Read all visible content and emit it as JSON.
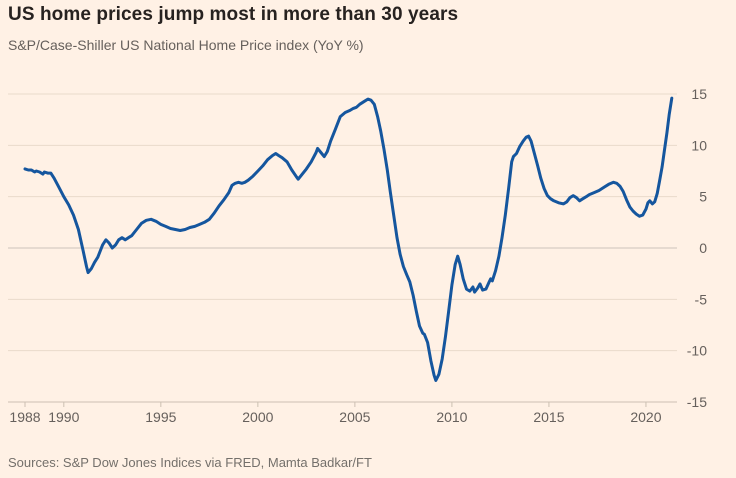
{
  "header": {
    "title": "US home prices jump most in more than 30 years",
    "subtitle": "S&P/Case-Shiller US National Home Price index (YoY %)"
  },
  "footer": {
    "source": "Sources: S&P Dow Jones Indices via FRED, Mamta Badkar/FT"
  },
  "colors": {
    "background": "#FFF1E5",
    "line": "#15569E",
    "grid": "#E9DACA",
    "zero_grid": "#CDC4BA",
    "axis": "#CCC0B2",
    "tick_label": "#66605C"
  },
  "chart_data": {
    "type": "line",
    "title": "US home prices jump most in more than 30 years",
    "subtitle": "S&P/Case-Shiller US National Home Price index (YoY %)",
    "xlabel": "",
    "ylabel": "YoY %",
    "xlim": [
      1988,
      2021.6
    ],
    "ylim": [
      -15,
      15
    ],
    "x_ticks": [
      1988,
      1990,
      1995,
      2000,
      2005,
      2010,
      2015,
      2020
    ],
    "y_ticks": [
      15,
      10,
      5,
      0,
      -5,
      -10,
      -15
    ],
    "grid": "horizontal",
    "legend": "none",
    "y_axis_side": "right",
    "series": [
      {
        "name": "S&P/Case-Shiller US National Home Price index (YoY %)",
        "points": [
          [
            1988.0,
            7.7
          ],
          [
            1988.17,
            7.6
          ],
          [
            1988.33,
            7.6
          ],
          [
            1988.5,
            7.4
          ],
          [
            1988.58,
            7.5
          ],
          [
            1988.75,
            7.4
          ],
          [
            1988.92,
            7.2
          ],
          [
            1989.0,
            7.4
          ],
          [
            1989.17,
            7.3
          ],
          [
            1989.33,
            7.3
          ],
          [
            1989.5,
            6.8
          ],
          [
            1989.75,
            5.9
          ],
          [
            1990.0,
            5.0
          ],
          [
            1990.25,
            4.2
          ],
          [
            1990.5,
            3.2
          ],
          [
            1990.75,
            1.8
          ],
          [
            1991.0,
            -0.3
          ],
          [
            1991.17,
            -1.8
          ],
          [
            1991.25,
            -2.4
          ],
          [
            1991.42,
            -2.0
          ],
          [
            1991.58,
            -1.4
          ],
          [
            1991.75,
            -0.9
          ],
          [
            1992.0,
            0.3
          ],
          [
            1992.17,
            0.8
          ],
          [
            1992.33,
            0.5
          ],
          [
            1992.5,
            0.0
          ],
          [
            1992.67,
            0.3
          ],
          [
            1992.83,
            0.8
          ],
          [
            1993.0,
            1.0
          ],
          [
            1993.17,
            0.8
          ],
          [
            1993.33,
            1.0
          ],
          [
            1993.5,
            1.2
          ],
          [
            1993.75,
            1.8
          ],
          [
            1994.0,
            2.4
          ],
          [
            1994.25,
            2.7
          ],
          [
            1994.5,
            2.8
          ],
          [
            1994.75,
            2.6
          ],
          [
            1995.0,
            2.3
          ],
          [
            1995.25,
            2.1
          ],
          [
            1995.5,
            1.9
          ],
          [
            1995.75,
            1.8
          ],
          [
            1996.0,
            1.7
          ],
          [
            1996.25,
            1.8
          ],
          [
            1996.5,
            2.0
          ],
          [
            1996.75,
            2.1
          ],
          [
            1997.0,
            2.3
          ],
          [
            1997.25,
            2.5
          ],
          [
            1997.5,
            2.8
          ],
          [
            1997.75,
            3.4
          ],
          [
            1998.0,
            4.1
          ],
          [
            1998.25,
            4.7
          ],
          [
            1998.5,
            5.4
          ],
          [
            1998.67,
            6.1
          ],
          [
            1998.83,
            6.3
          ],
          [
            1999.0,
            6.4
          ],
          [
            1999.17,
            6.3
          ],
          [
            1999.33,
            6.4
          ],
          [
            1999.5,
            6.6
          ],
          [
            1999.75,
            7.0
          ],
          [
            2000.0,
            7.5
          ],
          [
            2000.25,
            8.0
          ],
          [
            2000.5,
            8.6
          ],
          [
            2000.75,
            9.0
          ],
          [
            2000.92,
            9.2
          ],
          [
            2001.08,
            9.0
          ],
          [
            2001.25,
            8.8
          ],
          [
            2001.5,
            8.4
          ],
          [
            2001.75,
            7.6
          ],
          [
            2002.0,
            6.9
          ],
          [
            2002.08,
            6.7
          ],
          [
            2002.25,
            7.1
          ],
          [
            2002.5,
            7.7
          ],
          [
            2002.75,
            8.4
          ],
          [
            2003.0,
            9.3
          ],
          [
            2003.08,
            9.7
          ],
          [
            2003.25,
            9.3
          ],
          [
            2003.42,
            8.9
          ],
          [
            2003.58,
            9.4
          ],
          [
            2003.75,
            10.4
          ],
          [
            2004.0,
            11.6
          ],
          [
            2004.25,
            12.8
          ],
          [
            2004.5,
            13.2
          ],
          [
            2004.75,
            13.4
          ],
          [
            2004.92,
            13.6
          ],
          [
            2005.08,
            13.7
          ],
          [
            2005.25,
            14.0
          ],
          [
            2005.5,
            14.3
          ],
          [
            2005.67,
            14.5
          ],
          [
            2005.83,
            14.4
          ],
          [
            2006.0,
            14.0
          ],
          [
            2006.17,
            12.8
          ],
          [
            2006.33,
            11.4
          ],
          [
            2006.5,
            9.6
          ],
          [
            2006.67,
            7.6
          ],
          [
            2006.83,
            5.4
          ],
          [
            2007.0,
            3.2
          ],
          [
            2007.17,
            1.0
          ],
          [
            2007.33,
            -0.6
          ],
          [
            2007.5,
            -1.8
          ],
          [
            2007.67,
            -2.6
          ],
          [
            2007.83,
            -3.3
          ],
          [
            2008.0,
            -4.6
          ],
          [
            2008.17,
            -6.2
          ],
          [
            2008.33,
            -7.6
          ],
          [
            2008.5,
            -8.3
          ],
          [
            2008.58,
            -8.4
          ],
          [
            2008.75,
            -9.2
          ],
          [
            2008.92,
            -11.0
          ],
          [
            2009.08,
            -12.4
          ],
          [
            2009.17,
            -12.9
          ],
          [
            2009.33,
            -12.3
          ],
          [
            2009.5,
            -10.8
          ],
          [
            2009.67,
            -8.6
          ],
          [
            2009.83,
            -6.2
          ],
          [
            2010.0,
            -3.6
          ],
          [
            2010.17,
            -1.6
          ],
          [
            2010.3,
            -0.8
          ],
          [
            2010.42,
            -1.6
          ],
          [
            2010.58,
            -3.0
          ],
          [
            2010.75,
            -4.0
          ],
          [
            2010.92,
            -4.2
          ],
          [
            2011.08,
            -3.8
          ],
          [
            2011.17,
            -4.3
          ],
          [
            2011.33,
            -3.9
          ],
          [
            2011.45,
            -3.5
          ],
          [
            2011.58,
            -4.1
          ],
          [
            2011.75,
            -4.0
          ],
          [
            2011.92,
            -3.3
          ],
          [
            2012.0,
            -3.0
          ],
          [
            2012.08,
            -3.2
          ],
          [
            2012.25,
            -2.2
          ],
          [
            2012.42,
            -0.8
          ],
          [
            2012.58,
            1.0
          ],
          [
            2012.75,
            3.2
          ],
          [
            2012.92,
            5.8
          ],
          [
            2013.08,
            8.4
          ],
          [
            2013.17,
            8.9
          ],
          [
            2013.33,
            9.2
          ],
          [
            2013.5,
            9.9
          ],
          [
            2013.67,
            10.4
          ],
          [
            2013.83,
            10.8
          ],
          [
            2013.95,
            10.9
          ],
          [
            2014.08,
            10.4
          ],
          [
            2014.25,
            9.2
          ],
          [
            2014.42,
            8.0
          ],
          [
            2014.58,
            6.8
          ],
          [
            2014.75,
            5.8
          ],
          [
            2014.92,
            5.1
          ],
          [
            2015.08,
            4.8
          ],
          [
            2015.25,
            4.6
          ],
          [
            2015.5,
            4.4
          ],
          [
            2015.75,
            4.3
          ],
          [
            2015.92,
            4.5
          ],
          [
            2016.08,
            4.9
          ],
          [
            2016.25,
            5.1
          ],
          [
            2016.42,
            4.9
          ],
          [
            2016.58,
            4.6
          ],
          [
            2016.75,
            4.8
          ],
          [
            2016.92,
            5.0
          ],
          [
            2017.08,
            5.2
          ],
          [
            2017.33,
            5.4
          ],
          [
            2017.58,
            5.6
          ],
          [
            2017.83,
            5.9
          ],
          [
            2018.08,
            6.2
          ],
          [
            2018.33,
            6.4
          ],
          [
            2018.5,
            6.3
          ],
          [
            2018.67,
            6.0
          ],
          [
            2018.83,
            5.5
          ],
          [
            2019.0,
            4.7
          ],
          [
            2019.17,
            4.0
          ],
          [
            2019.33,
            3.6
          ],
          [
            2019.5,
            3.3
          ],
          [
            2019.67,
            3.1
          ],
          [
            2019.83,
            3.2
          ],
          [
            2020.0,
            3.8
          ],
          [
            2020.1,
            4.4
          ],
          [
            2020.2,
            4.6
          ],
          [
            2020.33,
            4.3
          ],
          [
            2020.45,
            4.5
          ],
          [
            2020.58,
            5.3
          ],
          [
            2020.7,
            6.5
          ],
          [
            2020.83,
            7.9
          ],
          [
            2020.95,
            9.5
          ],
          [
            2021.08,
            11.2
          ],
          [
            2021.2,
            13.0
          ],
          [
            2021.33,
            14.6
          ]
        ]
      }
    ]
  }
}
